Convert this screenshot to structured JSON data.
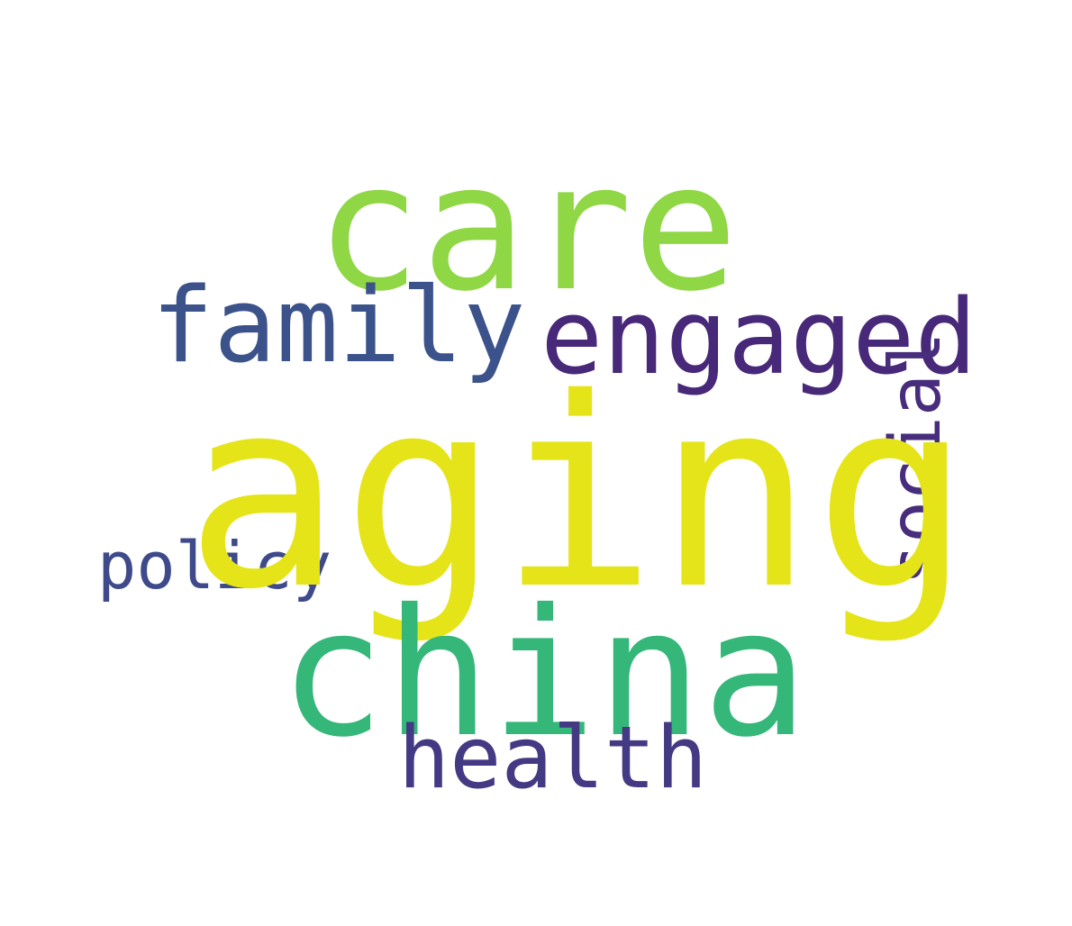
{
  "words": {
    "care": {
      "text": "care",
      "color": "#8fd744"
    },
    "aging": {
      "text": "aging",
      "color": "#e5e419"
    },
    "china": {
      "text": "china",
      "color": "#35b779"
    },
    "family": {
      "text": "family",
      "color": "#3b528b"
    },
    "engaged": {
      "text": "engaged",
      "color": "#482878"
    },
    "health": {
      "text": "health",
      "color": "#443983"
    },
    "policy": {
      "text": "policy",
      "color": "#3e4a89"
    },
    "social": {
      "text": "social",
      "color": "#472d7b"
    }
  }
}
